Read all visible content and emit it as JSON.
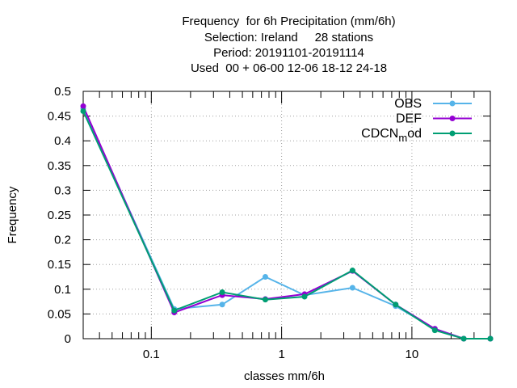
{
  "chart_data": {
    "type": "line",
    "title_lines": [
      "Frequency  for 6h Precipitation (mm/6h)",
      "Selection: Ireland     28 stations",
      "Period: 20191101-20191114",
      "Used  00 + 06-00 12-06 18-12 24-18"
    ],
    "xlabel": "classes mm/6h",
    "ylabel": "Frequency",
    "xscale": "log",
    "xlim": [
      0.03,
      40
    ],
    "ylim": [
      0,
      0.5
    ],
    "grid": true,
    "legend_position": "top-right",
    "x": [
      0.03,
      0.15,
      0.35,
      0.75,
      1.5,
      3.5,
      7.5,
      15,
      25,
      40
    ],
    "yticks": [
      "0",
      "0.05",
      "0.1",
      "0.15",
      "0.2",
      "0.25",
      "0.3",
      "0.35",
      "0.4",
      "0.45",
      "0.5"
    ],
    "ytick_values": [
      0,
      0.05,
      0.1,
      0.15,
      0.2,
      0.25,
      0.3,
      0.35,
      0.4,
      0.45,
      0.5
    ],
    "xticks": [
      "0.1",
      "1",
      "10"
    ],
    "xtick_values": [
      0.1,
      1,
      10
    ],
    "series": [
      {
        "name": "OBS",
        "color": "#56b4e9",
        "values": [
          0.465,
          0.06,
          0.069,
          0.125,
          0.088,
          0.103,
          0.066,
          0.02,
          0.0,
          0.0
        ]
      },
      {
        "name": "DEF",
        "color": "#9400d3",
        "values": [
          0.47,
          0.053,
          0.088,
          0.08,
          0.09,
          0.137,
          0.069,
          0.02,
          0.0,
          0.0
        ]
      },
      {
        "name": "CDCN",
        "name_subscript": "m",
        "name_suffix": "od",
        "color": "#009e73",
        "values": [
          0.46,
          0.057,
          0.094,
          0.079,
          0.085,
          0.138,
          0.069,
          0.017,
          0.0,
          0.0
        ]
      }
    ]
  }
}
